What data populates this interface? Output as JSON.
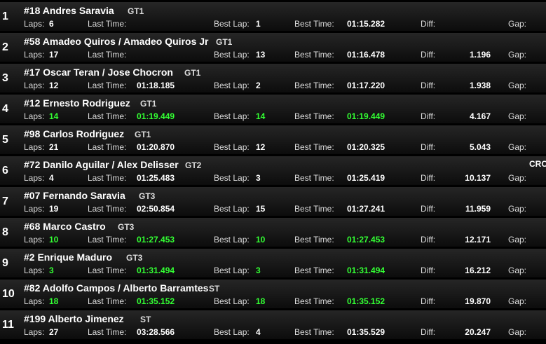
{
  "colors": {
    "highlight": "#33ff33",
    "text": "#ffffff"
  },
  "labels": {
    "laps": "Laps:",
    "last_time": "Last Time:",
    "best_lap": "Best Lap:",
    "best_time": "Best Time:",
    "diff": "Diff:",
    "gap": "Gap:"
  },
  "rows": [
    {
      "pos": "1",
      "name": "#18 Andres Saravia",
      "cls": "GT1",
      "laps": "6",
      "last": "",
      "best_lap": "1",
      "best_time": "01:15.282",
      "diff": "",
      "gap": "",
      "highlight": false
    },
    {
      "pos": "2",
      "name": "#58 Amadeo Quiros / Amadeo Quiros Jr",
      "cls": "GT1",
      "laps": "17",
      "last": "",
      "best_lap": "13",
      "best_time": "01:16.478",
      "diff": "1.196",
      "gap": "",
      "highlight": false
    },
    {
      "pos": "3",
      "name": "#17 Oscar Teran / Jose Chocron",
      "cls": "GT1",
      "laps": "12",
      "last": "01:18.185",
      "best_lap": "2",
      "best_time": "01:17.220",
      "diff": "1.938",
      "gap": "",
      "highlight": false
    },
    {
      "pos": "4",
      "name": "#12 Ernesto Rodriguez",
      "cls": "GT1",
      "laps": "14",
      "last": "01:19.449",
      "best_lap": "14",
      "best_time": "01:19.449",
      "diff": "4.167",
      "gap": "",
      "highlight": true
    },
    {
      "pos": "5",
      "name": "#98 Carlos Rodriguez",
      "cls": "GT1",
      "laps": "21",
      "last": "01:20.870",
      "best_lap": "12",
      "best_time": "01:20.325",
      "diff": "5.043",
      "gap": "",
      "highlight": false
    },
    {
      "pos": "6",
      "name": "#72 Danilo Aguilar / Alex Delisser",
      "cls": "GT2",
      "laps": "4",
      "last": "01:25.483",
      "best_lap": "3",
      "best_time": "01:25.419",
      "diff": "10.137",
      "gap": "",
      "highlight": false,
      "extra": "CRC"
    },
    {
      "pos": "7",
      "name": "#07 Fernando Saravia",
      "cls": "GT3",
      "laps": "19",
      "last": "02:50.854",
      "best_lap": "15",
      "best_time": "01:27.241",
      "diff": "11.959",
      "gap": "",
      "highlight": false
    },
    {
      "pos": "8",
      "name": "#68 Marco Castro",
      "cls": "GT3",
      "laps": "10",
      "last": "01:27.453",
      "best_lap": "10",
      "best_time": "01:27.453",
      "diff": "12.171",
      "gap": "",
      "highlight": true
    },
    {
      "pos": "9",
      "name": "#2 Enrique Maduro",
      "cls": "GT3",
      "laps": "3",
      "last": "01:31.494",
      "best_lap": "3",
      "best_time": "01:31.494",
      "diff": "16.212",
      "gap": "",
      "highlight": true
    },
    {
      "pos": "10",
      "name": "#82 Adolfo Campos / Alberto Barramtes",
      "cls": "ST",
      "laps": "18",
      "last": "01:35.152",
      "best_lap": "18",
      "best_time": "01:35.152",
      "diff": "19.870",
      "gap": "",
      "highlight": true
    },
    {
      "pos": "11",
      "name": "#199 Alberto  Jimenez",
      "cls": "ST",
      "laps": "27",
      "last": "03:28.566",
      "best_lap": "4",
      "best_time": "01:35.529",
      "diff": "20.247",
      "gap": "",
      "highlight": false
    }
  ]
}
